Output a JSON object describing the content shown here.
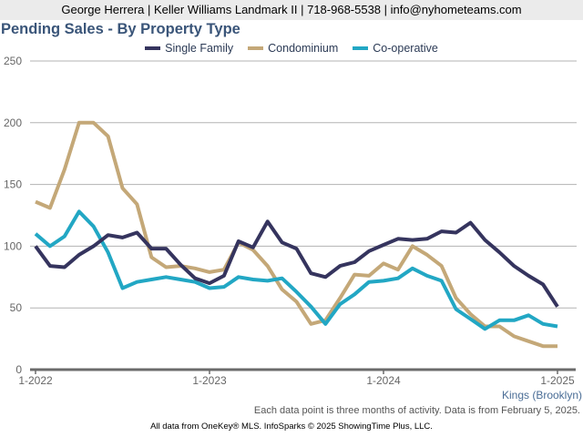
{
  "header": {
    "contact_line": "George Herrera | Keller Williams Landmark II | 718-968-5538 | info@nyhometeams.com"
  },
  "chart_meta": {
    "region_label": "Kings (Brooklyn)",
    "footnote": "Each data point is three months of activity. Data is from February 5, 2025.",
    "footer": "All data from OneKey® MLS. InfoSparks © 2025 ShowingTime Plus, LLC."
  },
  "chart_data": {
    "type": "line",
    "title": "Pending Sales - By Property Type",
    "xlabel": "",
    "ylabel": "",
    "ylim": [
      0,
      250
    ],
    "yticks": [
      0,
      50,
      100,
      150,
      200,
      250
    ],
    "xticks": [
      "1-2022",
      "1-2023",
      "1-2024",
      "1-2025"
    ],
    "x_start": "2022-01",
    "x_end": "2025-01",
    "x_step": "month",
    "grid": true,
    "legend_position": "top-center",
    "series": [
      {
        "name": "Single Family",
        "color": "#35345e",
        "values": [
          100,
          84,
          83,
          93,
          100,
          109,
          107,
          111,
          98,
          98,
          85,
          74,
          70,
          76,
          104,
          99,
          120,
          103,
          98,
          78,
          75,
          84,
          87,
          96,
          101,
          106,
          105,
          106,
          112,
          111,
          119,
          105,
          95,
          84,
          76,
          69,
          51
        ]
      },
      {
        "name": "Condominium",
        "color": "#c4a878",
        "values": [
          136,
          131,
          162,
          200,
          200,
          189,
          147,
          134,
          91,
          83,
          84,
          82,
          79,
          81,
          103,
          97,
          84,
          65,
          55,
          37,
          40,
          58,
          77,
          76,
          86,
          81,
          100,
          93,
          84,
          58,
          45,
          35,
          35,
          27,
          23,
          19,
          19
        ]
      },
      {
        "name": "Co-operative",
        "color": "#22a7c4",
        "values": [
          110,
          100,
          108,
          128,
          116,
          95,
          66,
          71,
          73,
          75,
          73,
          71,
          66,
          67,
          75,
          73,
          72,
          74,
          63,
          51,
          37,
          53,
          61,
          71,
          72,
          74,
          82,
          76,
          72,
          49,
          41,
          33,
          40,
          40,
          44,
          37,
          35
        ]
      }
    ]
  }
}
